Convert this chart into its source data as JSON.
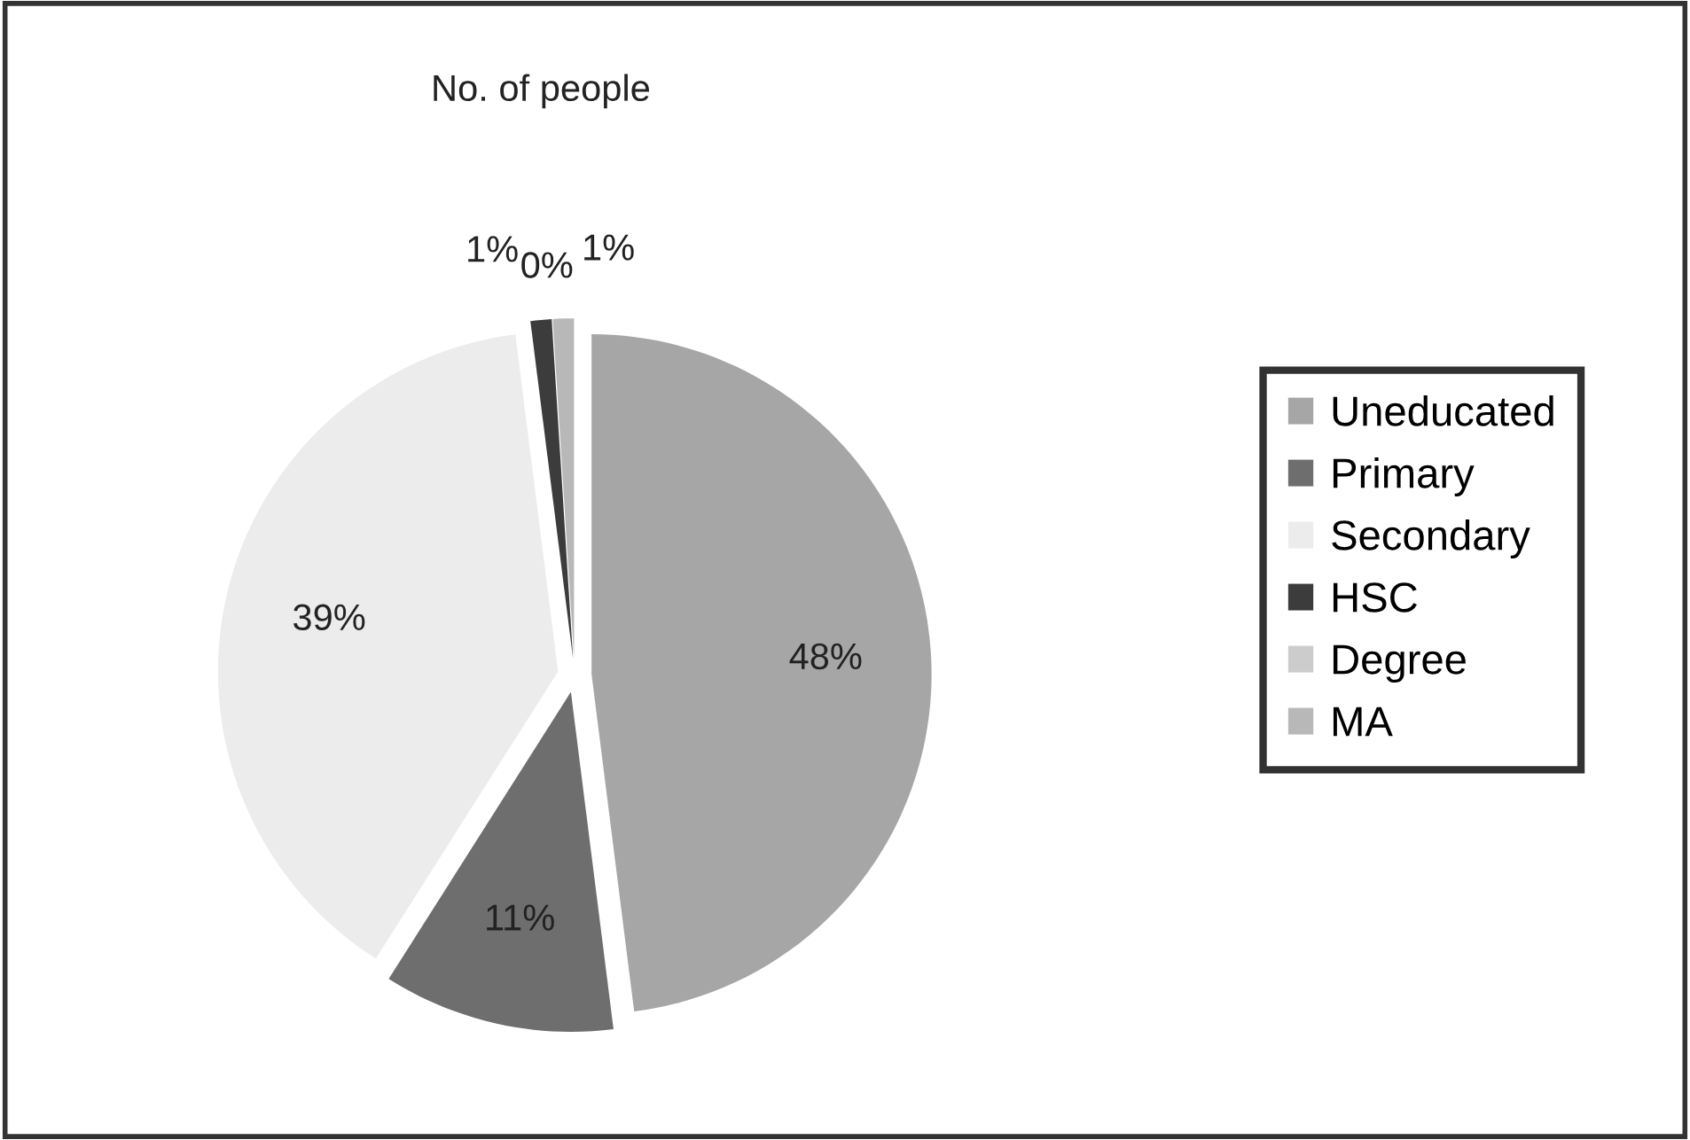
{
  "chart_data": {
    "type": "pie",
    "title": "No. of people",
    "categories": [
      "Uneducated",
      "Primary",
      "Secondary",
      "HSC",
      "Degree",
      "MA"
    ],
    "values": [
      48,
      11,
      39,
      1,
      0,
      1
    ],
    "colors": [
      "#a6a6a6",
      "#6e6e6e",
      "#ececec",
      "#3c3c3c",
      "#cccccc",
      "#b8b8b8"
    ],
    "value_labels": [
      "48%",
      "11%",
      "39%",
      "1%",
      "0%",
      "1%"
    ],
    "legend": "right"
  }
}
